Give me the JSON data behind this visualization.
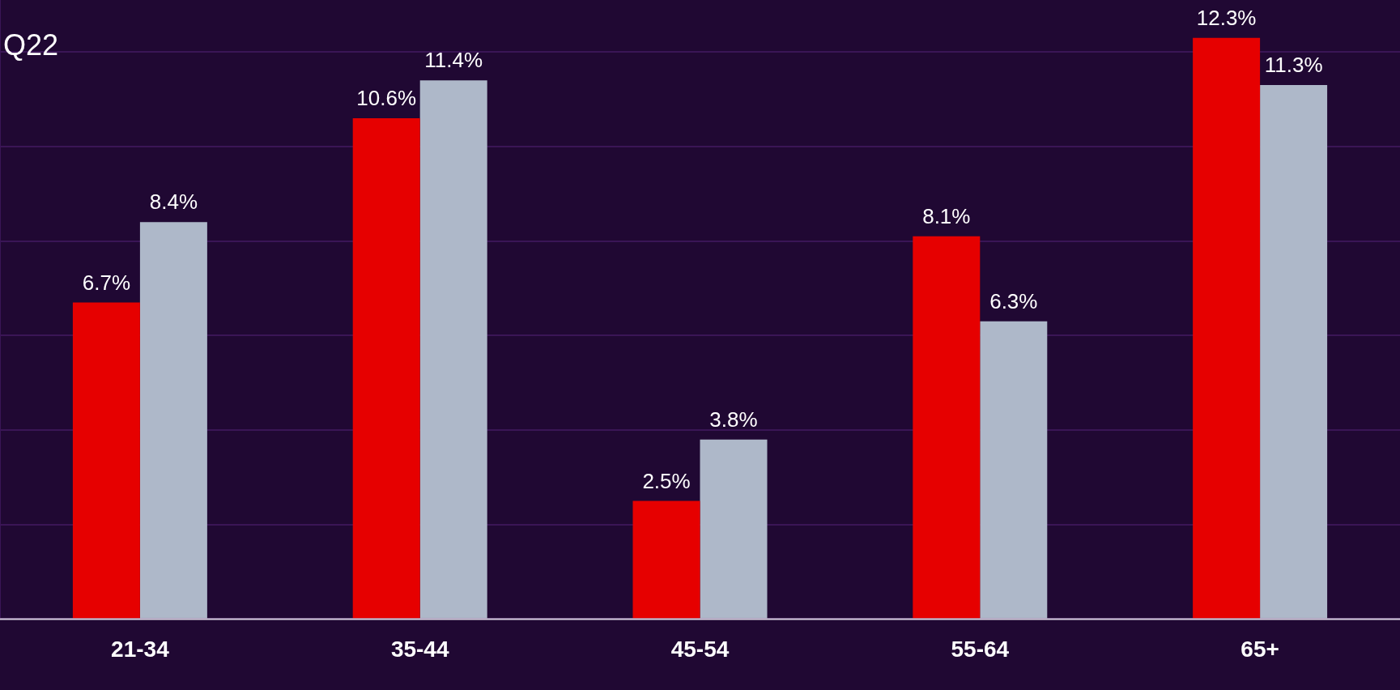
{
  "chart_data": {
    "type": "bar",
    "annotations": [
      "Q22"
    ],
    "categories": [
      "21-34",
      "35-44",
      "45-54",
      "55-64",
      "65+"
    ],
    "series": [
      {
        "color": "#e60000",
        "values": [
          6.7,
          10.6,
          2.5,
          8.1,
          12.3
        ],
        "value_labels": [
          "6.7%",
          "10.6%",
          "2.5%",
          "8.1%",
          "12.3%"
        ]
      },
      {
        "color": "#aeb8c9",
        "values": [
          8.4,
          11.4,
          3.8,
          6.3,
          11.3
        ],
        "value_labels": [
          "8.4%",
          "11.4%",
          "3.8%",
          "6.3%",
          "11.3%"
        ]
      }
    ],
    "ylim": [
      0,
      13.1
    ],
    "yticks": [
      {
        "value": 0,
        "label": null
      },
      {
        "value": 2,
        "label": null
      },
      {
        "value": 4,
        "label": null
      },
      {
        "value": 6,
        "label": null
      },
      {
        "value": 8,
        "label": null
      },
      {
        "value": 10,
        "label": null
      },
      {
        "value": 12,
        "label": null
      }
    ],
    "grid": "y",
    "legend": false,
    "tick_labels": "x"
  }
}
